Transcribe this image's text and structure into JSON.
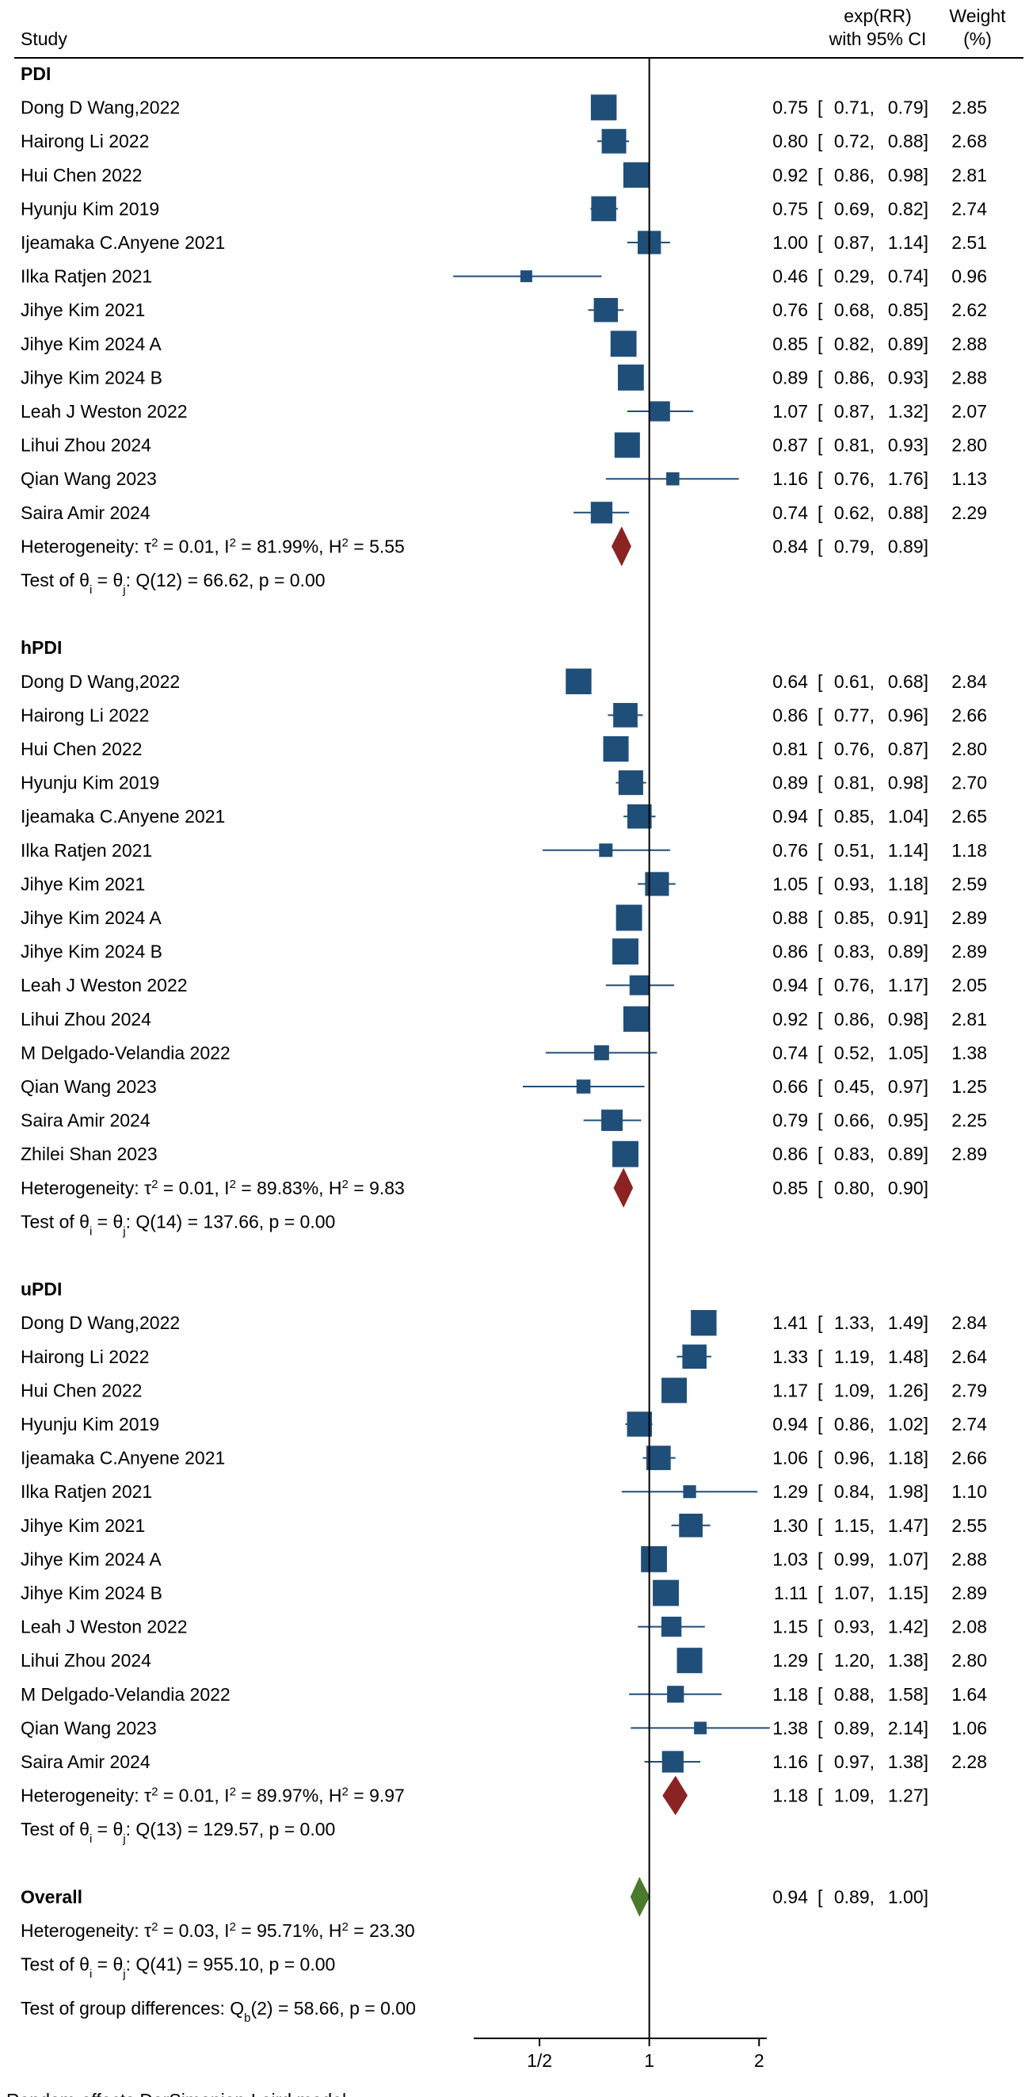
{
  "chart_data": {
    "type": "forest",
    "header": {
      "study": "Study",
      "effect_line1": "exp(RR)",
      "effect_line2": "with 95% CI",
      "weight_line1": "Weight",
      "weight_line2": "(%)"
    },
    "scale": "log2",
    "xlim": [
      0.33,
      2.1
    ],
    "null_value": 1,
    "ticks": [
      {
        "value": 0.5,
        "label": "1/2"
      },
      {
        "value": 1,
        "label": "1"
      },
      {
        "value": 2,
        "label": "2"
      }
    ],
    "groups": [
      {
        "name": "PDI",
        "studies": [
          {
            "study": "Dong D Wang,2022",
            "est": 0.75,
            "lo": 0.71,
            "hi": 0.79,
            "est_text": "0.75",
            "lo_text": "0.71",
            "hi_text": "0.79",
            "weight": "2.85"
          },
          {
            "study": "Hairong Li 2022",
            "est": 0.8,
            "lo": 0.72,
            "hi": 0.88,
            "est_text": "0.80",
            "lo_text": "0.72",
            "hi_text": "0.88",
            "weight": "2.68"
          },
          {
            "study": "Hui Chen 2022",
            "est": 0.92,
            "lo": 0.86,
            "hi": 0.98,
            "est_text": "0.92",
            "lo_text": "0.86",
            "hi_text": "0.98",
            "weight": "2.81"
          },
          {
            "study": "Hyunju Kim  2019",
            "est": 0.75,
            "lo": 0.69,
            "hi": 0.82,
            "est_text": "0.75",
            "lo_text": "0.69",
            "hi_text": "0.82",
            "weight": "2.74"
          },
          {
            "study": "Ijeamaka C.Anyene 2021",
            "est": 1.0,
            "lo": 0.87,
            "hi": 1.14,
            "est_text": "1.00",
            "lo_text": "0.87",
            "hi_text": "1.14",
            "weight": "2.51"
          },
          {
            "study": "Ilka Ratjen 2021",
            "est": 0.46,
            "lo": 0.29,
            "hi": 0.74,
            "est_text": "0.46",
            "lo_text": "0.29",
            "hi_text": "0.74",
            "weight": "0.96"
          },
          {
            "study": "Jihye Kim 2021",
            "est": 0.76,
            "lo": 0.68,
            "hi": 0.85,
            "est_text": "0.76",
            "lo_text": "0.68",
            "hi_text": "0.85",
            "weight": "2.62"
          },
          {
            "study": "Jihye Kim 2024 A",
            "est": 0.85,
            "lo": 0.82,
            "hi": 0.89,
            "est_text": "0.85",
            "lo_text": "0.82",
            "hi_text": "0.89",
            "weight": "2.88"
          },
          {
            "study": "Jihye Kim 2024 B",
            "est": 0.89,
            "lo": 0.86,
            "hi": 0.93,
            "est_text": "0.89",
            "lo_text": "0.86",
            "hi_text": "0.93",
            "weight": "2.88"
          },
          {
            "study": "Leah J Weston 2022",
            "est": 1.07,
            "lo": 0.87,
            "hi": 1.32,
            "est_text": "1.07",
            "lo_text": "0.87",
            "hi_text": "1.32",
            "weight": "2.07"
          },
          {
            "study": "Lihui Zhou 2024",
            "est": 0.87,
            "lo": 0.81,
            "hi": 0.93,
            "est_text": "0.87",
            "lo_text": "0.81",
            "hi_text": "0.93",
            "weight": "2.80"
          },
          {
            "study": "Qian Wang 2023",
            "est": 1.16,
            "lo": 0.76,
            "hi": 1.76,
            "est_text": "1.16",
            "lo_text": "0.76",
            "hi_text": "1.76",
            "weight": "1.13"
          },
          {
            "study": "Saira Amir  2024",
            "est": 0.74,
            "lo": 0.62,
            "hi": 0.88,
            "est_text": "0.74",
            "lo_text": "0.62",
            "hi_text": "0.88",
            "weight": "2.29"
          }
        ],
        "pooled": {
          "est": 0.84,
          "lo": 0.79,
          "hi": 0.89,
          "est_text": "0.84",
          "lo_text": "0.79",
          "hi_text": "0.89"
        },
        "heterogeneity": {
          "tau2": "0.01",
          "i2": "81.99%",
          "h2": "5.55"
        },
        "test": {
          "df": "12",
          "q": "66.62",
          "p": "0.00"
        }
      },
      {
        "name": "hPDI",
        "studies": [
          {
            "study": "Dong D Wang,2022",
            "est": 0.64,
            "lo": 0.61,
            "hi": 0.68,
            "est_text": "0.64",
            "lo_text": "0.61",
            "hi_text": "0.68",
            "weight": "2.84"
          },
          {
            "study": "Hairong Li 2022",
            "est": 0.86,
            "lo": 0.77,
            "hi": 0.96,
            "est_text": "0.86",
            "lo_text": "0.77",
            "hi_text": "0.96",
            "weight": "2.66"
          },
          {
            "study": "Hui Chen 2022",
            "est": 0.81,
            "lo": 0.76,
            "hi": 0.87,
            "est_text": "0.81",
            "lo_text": "0.76",
            "hi_text": "0.87",
            "weight": "2.80"
          },
          {
            "study": "Hyunju Kim  2019",
            "est": 0.89,
            "lo": 0.81,
            "hi": 0.98,
            "est_text": "0.89",
            "lo_text": "0.81",
            "hi_text": "0.98",
            "weight": "2.70"
          },
          {
            "study": "Ijeamaka C.Anyene 2021",
            "est": 0.94,
            "lo": 0.85,
            "hi": 1.04,
            "est_text": "0.94",
            "lo_text": "0.85",
            "hi_text": "1.04",
            "weight": "2.65"
          },
          {
            "study": "Ilka Ratjen 2021",
            "est": 0.76,
            "lo": 0.51,
            "hi": 1.14,
            "est_text": "0.76",
            "lo_text": "0.51",
            "hi_text": "1.14",
            "weight": "1.18"
          },
          {
            "study": "Jihye Kim 2021",
            "est": 1.05,
            "lo": 0.93,
            "hi": 1.18,
            "est_text": "1.05",
            "lo_text": "0.93",
            "hi_text": "1.18",
            "weight": "2.59"
          },
          {
            "study": "Jihye Kim 2024 A",
            "est": 0.88,
            "lo": 0.85,
            "hi": 0.91,
            "est_text": "0.88",
            "lo_text": "0.85",
            "hi_text": "0.91",
            "weight": "2.89"
          },
          {
            "study": "Jihye Kim 2024 B",
            "est": 0.86,
            "lo": 0.83,
            "hi": 0.89,
            "est_text": "0.86",
            "lo_text": "0.83",
            "hi_text": "0.89",
            "weight": "2.89"
          },
          {
            "study": "Leah J Weston 2022",
            "est": 0.94,
            "lo": 0.76,
            "hi": 1.17,
            "est_text": "0.94",
            "lo_text": "0.76",
            "hi_text": "1.17",
            "weight": "2.05"
          },
          {
            "study": "Lihui Zhou 2024",
            "est": 0.92,
            "lo": 0.86,
            "hi": 0.98,
            "est_text": "0.92",
            "lo_text": "0.86",
            "hi_text": "0.98",
            "weight": "2.81"
          },
          {
            "study": "M Delgado-Velandia 2022",
            "est": 0.74,
            "lo": 0.52,
            "hi": 1.05,
            "est_text": "0.74",
            "lo_text": "0.52",
            "hi_text": "1.05",
            "weight": "1.38"
          },
          {
            "study": "Qian Wang 2023",
            "est": 0.66,
            "lo": 0.45,
            "hi": 0.97,
            "est_text": "0.66",
            "lo_text": "0.45",
            "hi_text": "0.97",
            "weight": "1.25"
          },
          {
            "study": "Saira Amir  2024",
            "est": 0.79,
            "lo": 0.66,
            "hi": 0.95,
            "est_text": "0.79",
            "lo_text": "0.66",
            "hi_text": "0.95",
            "weight": "2.25"
          },
          {
            "study": "Zhilei Shan 2023",
            "est": 0.86,
            "lo": 0.83,
            "hi": 0.89,
            "est_text": "0.86",
            "lo_text": "0.83",
            "hi_text": "0.89",
            "weight": "2.89"
          }
        ],
        "pooled": {
          "est": 0.85,
          "lo": 0.8,
          "hi": 0.9,
          "est_text": "0.85",
          "lo_text": "0.80",
          "hi_text": "0.90"
        },
        "heterogeneity": {
          "tau2": "0.01",
          "i2": "89.83%",
          "h2": "9.83"
        },
        "test": {
          "df": "14",
          "q": "137.66",
          "p": "0.00"
        }
      },
      {
        "name": "uPDI",
        "studies": [
          {
            "study": "Dong D Wang,2022",
            "est": 1.41,
            "lo": 1.33,
            "hi": 1.49,
            "est_text": "1.41",
            "lo_text": "1.33",
            "hi_text": "1.49",
            "weight": "2.84"
          },
          {
            "study": "Hairong Li 2022",
            "est": 1.33,
            "lo": 1.19,
            "hi": 1.48,
            "est_text": "1.33",
            "lo_text": "1.19",
            "hi_text": "1.48",
            "weight": "2.64"
          },
          {
            "study": "Hui Chen 2022",
            "est": 1.17,
            "lo": 1.09,
            "hi": 1.26,
            "est_text": "1.17",
            "lo_text": "1.09",
            "hi_text": "1.26",
            "weight": "2.79"
          },
          {
            "study": "Hyunju Kim  2019",
            "est": 0.94,
            "lo": 0.86,
            "hi": 1.02,
            "est_text": "0.94",
            "lo_text": "0.86",
            "hi_text": "1.02",
            "weight": "2.74"
          },
          {
            "study": "Ijeamaka C.Anyene 2021",
            "est": 1.06,
            "lo": 0.96,
            "hi": 1.18,
            "est_text": "1.06",
            "lo_text": "0.96",
            "hi_text": "1.18",
            "weight": "2.66"
          },
          {
            "study": "Ilka Ratjen 2021",
            "est": 1.29,
            "lo": 0.84,
            "hi": 1.98,
            "est_text": "1.29",
            "lo_text": "0.84",
            "hi_text": "1.98",
            "weight": "1.10"
          },
          {
            "study": "Jihye Kim 2021",
            "est": 1.3,
            "lo": 1.15,
            "hi": 1.47,
            "est_text": "1.30",
            "lo_text": "1.15",
            "hi_text": "1.47",
            "weight": "2.55"
          },
          {
            "study": "Jihye Kim 2024 A",
            "est": 1.03,
            "lo": 0.99,
            "hi": 1.07,
            "est_text": "1.03",
            "lo_text": "0.99",
            "hi_text": "1.07",
            "weight": "2.88"
          },
          {
            "study": "Jihye Kim 2024 B",
            "est": 1.11,
            "lo": 1.07,
            "hi": 1.15,
            "est_text": "1.11",
            "lo_text": "1.07",
            "hi_text": "1.15",
            "weight": "2.89"
          },
          {
            "study": "Leah J Weston 2022",
            "est": 1.15,
            "lo": 0.93,
            "hi": 1.42,
            "est_text": "1.15",
            "lo_text": "0.93",
            "hi_text": "1.42",
            "weight": "2.08"
          },
          {
            "study": "Lihui Zhou 2024",
            "est": 1.29,
            "lo": 1.2,
            "hi": 1.38,
            "est_text": "1.29",
            "lo_text": "1.20",
            "hi_text": "1.38",
            "weight": "2.80"
          },
          {
            "study": "M Delgado-Velandia 2022",
            "est": 1.18,
            "lo": 0.88,
            "hi": 1.58,
            "est_text": "1.18",
            "lo_text": "0.88",
            "hi_text": "1.58",
            "weight": "1.64"
          },
          {
            "study": "Qian Wang 2023",
            "est": 1.38,
            "lo": 0.89,
            "hi": 2.14,
            "est_text": "1.38",
            "lo_text": "0.89",
            "hi_text": "2.14",
            "weight": "1.06"
          },
          {
            "study": "Saira Amir  2024",
            "est": 1.16,
            "lo": 0.97,
            "hi": 1.38,
            "est_text": "1.16",
            "lo_text": "0.97",
            "hi_text": "1.38",
            "weight": "2.28"
          }
        ],
        "pooled": {
          "est": 1.18,
          "lo": 1.09,
          "hi": 1.27,
          "est_text": "1.18",
          "lo_text": "1.09",
          "hi_text": "1.27"
        },
        "heterogeneity": {
          "tau2": "0.01",
          "i2": "89.97%",
          "h2": "9.97"
        },
        "test": {
          "df": "13",
          "q": "129.57",
          "p": "0.00"
        }
      }
    ],
    "overall": {
      "label": "Overall",
      "est": 0.94,
      "lo": 0.89,
      "hi": 1.0,
      "est_text": "0.94",
      "lo_text": "0.89",
      "hi_text": "1.00",
      "heterogeneity": {
        "tau2": "0.03",
        "i2": "95.71%",
        "h2": "23.30"
      },
      "test": {
        "df": "41",
        "q": "955.10",
        "p": "0.00"
      }
    },
    "group_test": {
      "df": "2",
      "q": "58.66",
      "p": "0.00"
    },
    "footnote": "Random-effects DerSimonian-Laird model",
    "colors": {
      "study_box": "#1f4e79",
      "ci_line": "#1f4e79",
      "subgroup_diamond": "#8b2323",
      "overall_diamond": "#4a7a2c",
      "axis": "#000000"
    }
  }
}
